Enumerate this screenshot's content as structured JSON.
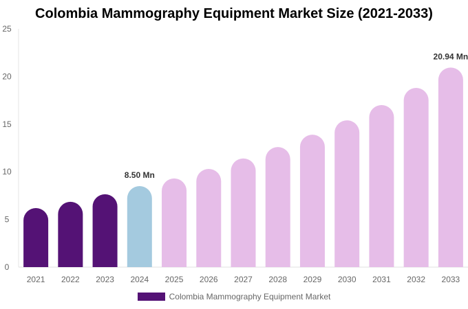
{
  "chart_data": {
    "type": "bar",
    "title": "Colombia Mammography Equipment Market Size (2021-2033)",
    "categories": [
      "2021",
      "2022",
      "2023",
      "2024",
      "2025",
      "2026",
      "2027",
      "2028",
      "2029",
      "2030",
      "2031",
      "2032",
      "2033"
    ],
    "series": [
      {
        "name": "Colombia Mammography Equipment Market",
        "values": [
          6.2,
          6.85,
          7.65,
          8.5,
          9.3,
          10.3,
          11.4,
          12.6,
          13.9,
          15.4,
          17.0,
          18.8,
          20.94
        ]
      }
    ],
    "data_labels": {
      "2024": "8.50 Mn",
      "2033": "20.94 Mn"
    },
    "ylim": [
      0,
      25
    ],
    "yticks": [
      0,
      5,
      10,
      15,
      20,
      25
    ],
    "colors": {
      "historical": "#541275",
      "base_year": "#a4cadf",
      "forecast": "#e6bde8"
    },
    "bar_color_groups": [
      "historical",
      "historical",
      "historical",
      "base_year",
      "forecast",
      "forecast",
      "forecast",
      "forecast",
      "forecast",
      "forecast",
      "forecast",
      "forecast",
      "forecast"
    ],
    "grid": false,
    "legend_position": "bottom"
  }
}
